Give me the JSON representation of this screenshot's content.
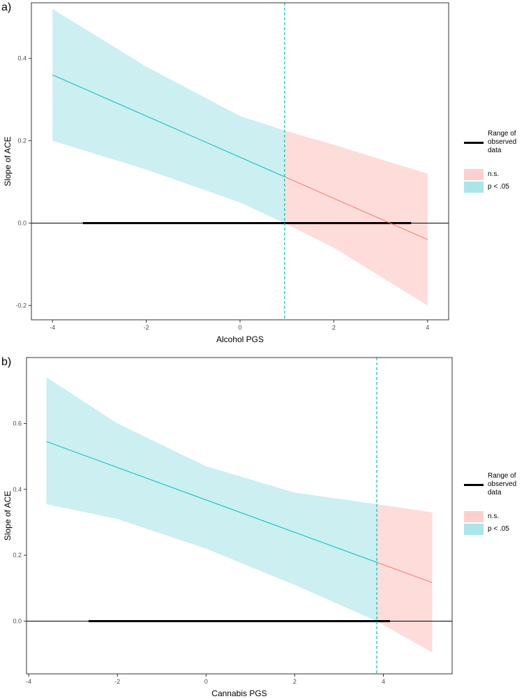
{
  "legend": {
    "range_label_line1": "Range of",
    "range_label_line2": "observed",
    "range_label_line3": "data",
    "ns_label": "n.s.",
    "sig_label": "p < .05",
    "ns_color": "#F8766D",
    "sig_color": "#00BFC4",
    "ns_fill": "#FDDCDA",
    "sig_fill": "#CCEFF1"
  },
  "chart_data": [
    {
      "panel_label": "a)",
      "type": "line",
      "xlabel": "Alcohol PGS",
      "ylabel": "Slope of ACE",
      "xlim": [
        -4.45,
        4.45
      ],
      "ylim": [
        -0.235,
        0.535
      ],
      "xticks": [
        -4,
        -2,
        0,
        2,
        4
      ],
      "xtick_labels": [
        "-4",
        "-2",
        "0",
        "2",
        "4"
      ],
      "yticks": [
        -0.2,
        0.0,
        0.2,
        0.4
      ],
      "ytick_labels": [
        "-0.2",
        "0.0",
        "0.2",
        "0.4"
      ],
      "slope_line": {
        "x": [
          -4,
          4
        ],
        "y": [
          0.36,
          -0.04
        ]
      },
      "ci_band": {
        "x": [
          -4,
          -2,
          0,
          0.95,
          2,
          4
        ],
        "lower": [
          0.2,
          0.13,
          0.05,
          0.0,
          -0.06,
          -0.2
        ],
        "upper": [
          0.52,
          0.38,
          0.26,
          0.225,
          0.19,
          0.12
        ]
      },
      "significance_boundary": 0.95,
      "observed_range": [
        -3.35,
        3.65
      ],
      "reference_line_y": 0,
      "grid": false
    },
    {
      "panel_label": "b)",
      "type": "line",
      "xlabel": "Cannabis PGS",
      "ylabel": "Slope of ACE",
      "xlim": [
        -4.05,
        5.55
      ],
      "ylim": [
        -0.16,
        0.8
      ],
      "xticks": [
        -4,
        -2,
        0,
        2,
        4
      ],
      "xtick_labels": [
        "-4",
        "-2",
        "0",
        "2",
        "4"
      ],
      "yticks": [
        0.0,
        0.2,
        0.4,
        0.6
      ],
      "ytick_labels": [
        "0.0",
        "0.2",
        "0.4",
        "0.6"
      ],
      "slope_line": {
        "x": [
          -3.6,
          5.1
        ],
        "y": [
          0.545,
          0.117
        ]
      },
      "ci_band": {
        "x": [
          -3.6,
          -2,
          0,
          2,
          3.85,
          5.1
        ],
        "lower": [
          0.355,
          0.31,
          0.22,
          0.11,
          0.0,
          -0.095
        ],
        "upper": [
          0.74,
          0.6,
          0.47,
          0.39,
          0.355,
          0.33
        ]
      },
      "significance_boundary": 3.85,
      "observed_range": [
        -2.65,
        4.15
      ],
      "reference_line_y": 0,
      "grid": false
    }
  ]
}
